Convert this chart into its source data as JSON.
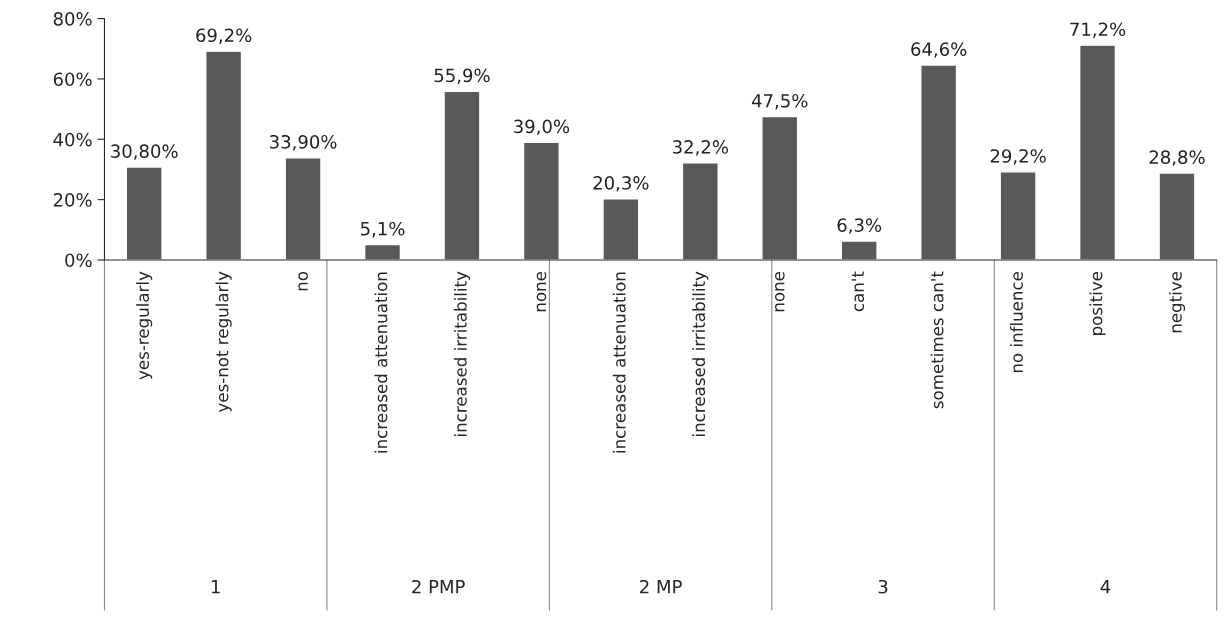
{
  "chart_data": {
    "type": "bar",
    "categories": [
      "yes-regularly",
      "yes-not regularly",
      "no",
      "increased attenuation",
      "increased irritability",
      "none",
      "increased attenuation",
      "increased irritability",
      "none",
      "can't",
      "sometimes can't",
      "no influence",
      "positive",
      "negtive"
    ],
    "values": [
      30.8,
      69.2,
      33.9,
      5.1,
      55.9,
      39.0,
      20.3,
      32.2,
      47.5,
      6.3,
      64.6,
      29.2,
      71.2,
      28.8
    ],
    "value_labels": [
      "30,80%",
      "69,2%",
      "33,90%",
      "5,1%",
      "55,9%",
      "39,0%",
      "20,3%",
      "32,2%",
      "47,5%",
      "6,3%",
      "64,6%",
      "29,2%",
      "71,2%",
      "28,8%"
    ],
    "color": "#595959",
    "ylim": [
      0,
      80
    ],
    "yticks": [
      {
        "value": 0,
        "label": "0%"
      },
      {
        "value": 20,
        "label": "20%"
      },
      {
        "value": 40,
        "label": "40%"
      },
      {
        "value": 60,
        "label": "60%"
      },
      {
        "value": 80,
        "label": "80%"
      }
    ],
    "annotations": [
      "1",
      "2 PMP",
      "2 MP",
      "3",
      "4"
    ],
    "grid": false
  }
}
